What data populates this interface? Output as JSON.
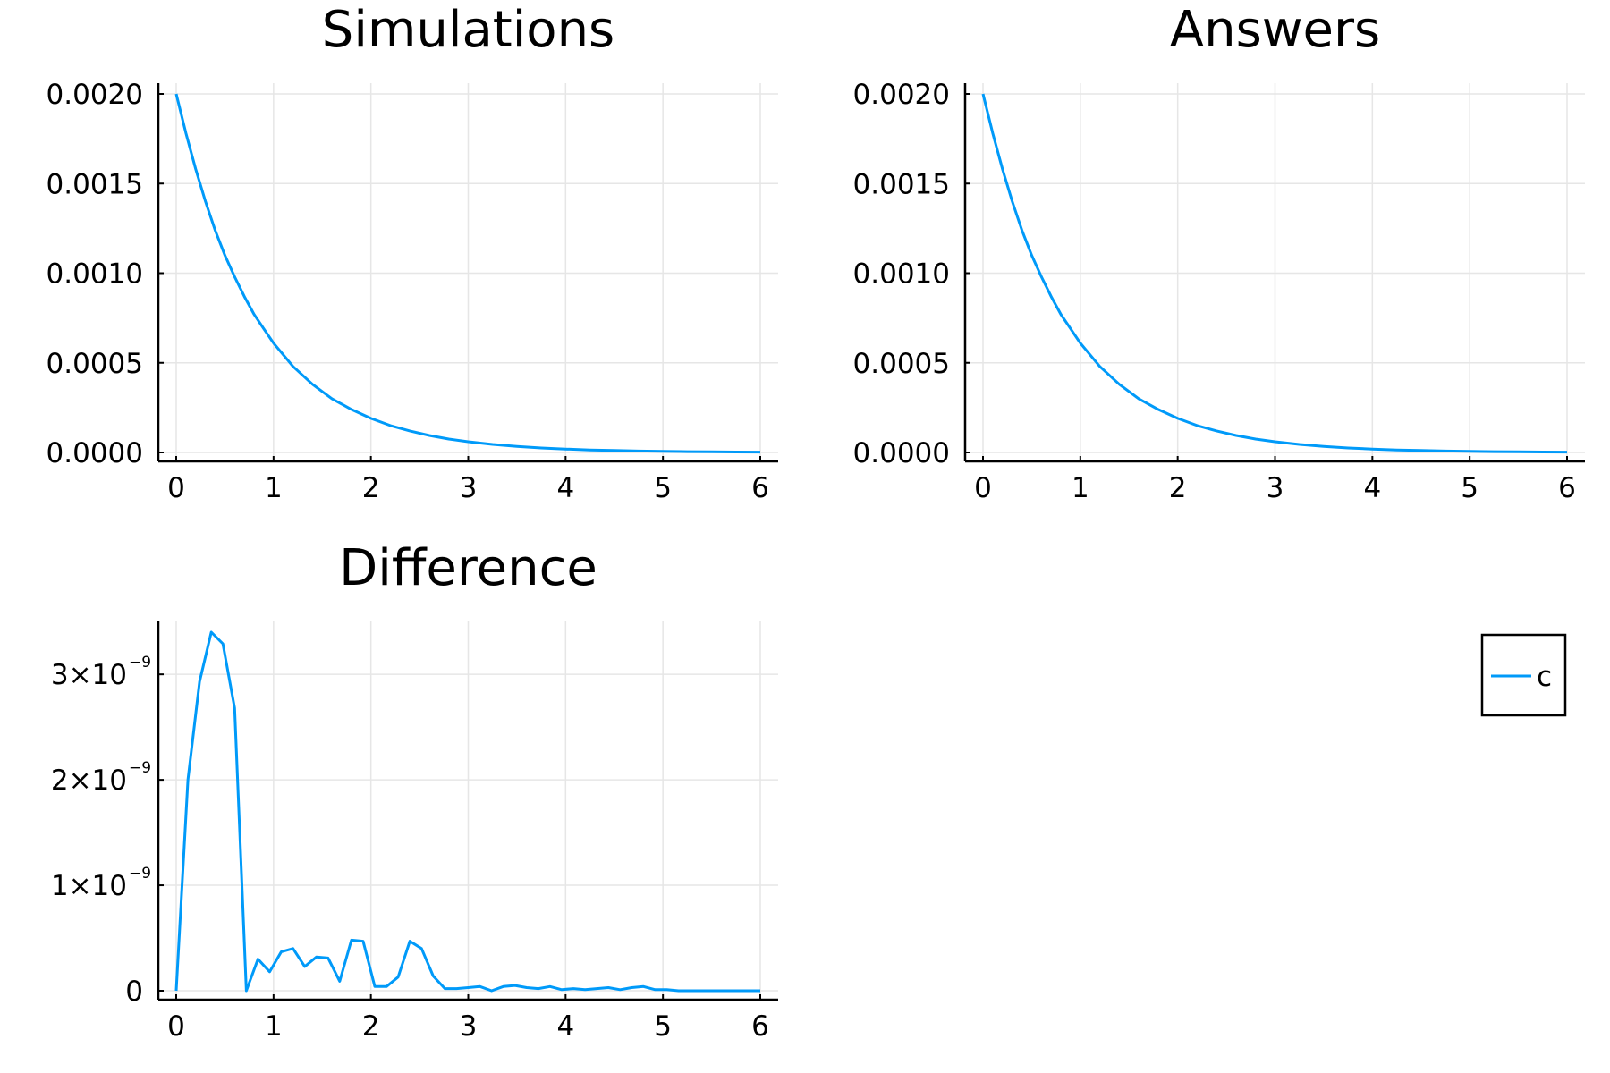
{
  "chart_data": [
    {
      "type": "line",
      "title": "Simulations",
      "xlim": [
        0,
        6
      ],
      "ylim": [
        0,
        0.002
      ],
      "x_ticks": [
        0,
        1,
        2,
        3,
        4,
        5,
        6
      ],
      "x_tick_labels": [
        "0",
        "1",
        "2",
        "3",
        "4",
        "5",
        "6"
      ],
      "y_ticks": [
        0,
        0.0005,
        0.001,
        0.0015,
        0.002
      ],
      "y_tick_labels": [
        "0.0000",
        "0.0005",
        "0.0010",
        "0.0015",
        "0.0020"
      ],
      "grid": true,
      "series": [
        {
          "name": "c",
          "x": [
            0,
            0.1,
            0.2,
            0.3,
            0.4,
            0.5,
            0.6,
            0.7,
            0.8,
            0.9,
            1.0,
            1.2,
            1.4,
            1.6,
            1.8,
            2.0,
            2.2,
            2.4,
            2.6,
            2.8,
            3.0,
            3.25,
            3.5,
            3.75,
            4.0,
            4.25,
            4.5,
            4.75,
            5.0,
            5.25,
            5.5,
            5.75,
            6.0
          ],
          "y": [
            0.002,
            0.00178,
            0.00158,
            0.0014,
            0.00124,
            0.0011,
            0.00098,
            0.00087,
            0.00077,
            0.00069,
            0.00061,
            0.00048,
            0.00038,
            0.0003,
            0.00024,
            0.00019,
            0.00015,
            0.00012,
            9.5e-05,
            7.5e-05,
            6e-05,
            4.5e-05,
            3.4e-05,
            2.5e-05,
            1.9e-05,
            1.4e-05,
            1.1e-05,
            8e-06,
            6e-06,
            4.5e-06,
            3.4e-06,
            2.5e-06,
            1.9e-06
          ],
          "color": "#009af9"
        }
      ]
    },
    {
      "type": "line",
      "title": "Answers",
      "xlim": [
        0,
        6
      ],
      "ylim": [
        0,
        0.002
      ],
      "x_ticks": [
        0,
        1,
        2,
        3,
        4,
        5,
        6
      ],
      "x_tick_labels": [
        "0",
        "1",
        "2",
        "3",
        "4",
        "5",
        "6"
      ],
      "y_ticks": [
        0,
        0.0005,
        0.001,
        0.0015,
        0.002
      ],
      "y_tick_labels": [
        "0.0000",
        "0.0005",
        "0.0010",
        "0.0015",
        "0.0020"
      ],
      "grid": true,
      "series": [
        {
          "name": "c",
          "x": [
            0,
            0.1,
            0.2,
            0.3,
            0.4,
            0.5,
            0.6,
            0.7,
            0.8,
            0.9,
            1.0,
            1.2,
            1.4,
            1.6,
            1.8,
            2.0,
            2.2,
            2.4,
            2.6,
            2.8,
            3.0,
            3.25,
            3.5,
            3.75,
            4.0,
            4.25,
            4.5,
            4.75,
            5.0,
            5.25,
            5.5,
            5.75,
            6.0
          ],
          "y": [
            0.002,
            0.00178,
            0.00158,
            0.0014,
            0.00124,
            0.0011,
            0.00098,
            0.00087,
            0.00077,
            0.00069,
            0.00061,
            0.00048,
            0.00038,
            0.0003,
            0.00024,
            0.00019,
            0.00015,
            0.00012,
            9.5e-05,
            7.5e-05,
            6e-05,
            4.5e-05,
            3.4e-05,
            2.5e-05,
            1.9e-05,
            1.4e-05,
            1.1e-05,
            8e-06,
            6e-06,
            4.5e-06,
            3.4e-06,
            2.5e-06,
            1.9e-06
          ],
          "color": "#009af9"
        }
      ]
    },
    {
      "type": "line",
      "title": "Difference",
      "xlim": [
        0,
        6
      ],
      "ylim": [
        0,
        3.4e-09
      ],
      "x_ticks": [
        0,
        1,
        2,
        3,
        4,
        5,
        6
      ],
      "x_tick_labels": [
        "0",
        "1",
        "2",
        "3",
        "4",
        "5",
        "6"
      ],
      "y_ticks": [
        0,
        1e-09,
        2e-09,
        3e-09
      ],
      "y_tick_labels": [
        "0",
        "1×10",
        "2×10",
        "3×10"
      ],
      "y_tick_exponents": [
        "",
        "−9",
        "−9",
        "−9"
      ],
      "grid": true,
      "series": [
        {
          "name": "c",
          "x": [
            0,
            0.12,
            0.24,
            0.36,
            0.48,
            0.6,
            0.72,
            0.84,
            0.96,
            1.08,
            1.2,
            1.32,
            1.44,
            1.56,
            1.68,
            1.8,
            1.92,
            2.04,
            2.16,
            2.28,
            2.4,
            2.52,
            2.64,
            2.76,
            2.88,
            3.0,
            3.12,
            3.24,
            3.36,
            3.48,
            3.6,
            3.72,
            3.84,
            3.96,
            4.08,
            4.2,
            4.32,
            4.44,
            4.56,
            4.68,
            4.8,
            4.92,
            5.04,
            5.16,
            5.28,
            5.4,
            5.52,
            5.64,
            5.76,
            5.88,
            6.0
          ],
          "y": [
            0,
            2e-09,
            2.93e-09,
            3.4e-09,
            3.29e-09,
            2.68e-09,
            0,
            3e-10,
            1.8e-10,
            3.7e-10,
            4e-10,
            2.3e-10,
            3.2e-10,
            3.1e-10,
            9e-11,
            4.8e-10,
            4.7e-10,
            4e-11,
            4e-11,
            1.3e-10,
            4.7e-10,
            4e-10,
            1.4e-10,
            2e-11,
            2e-11,
            3e-11,
            4e-11,
            0,
            4e-11,
            5e-11,
            3e-11,
            2e-11,
            4e-11,
            1e-11,
            2e-11,
            1e-11,
            2e-11,
            3e-11,
            1e-11,
            3e-11,
            4e-11,
            1e-11,
            1e-11,
            0,
            0,
            0,
            0,
            0,
            0,
            0,
            0
          ],
          "color": "#009af9"
        }
      ]
    }
  ],
  "legend": {
    "entries": [
      {
        "label": "c",
        "color": "#009af9"
      }
    ],
    "placement": "right"
  }
}
